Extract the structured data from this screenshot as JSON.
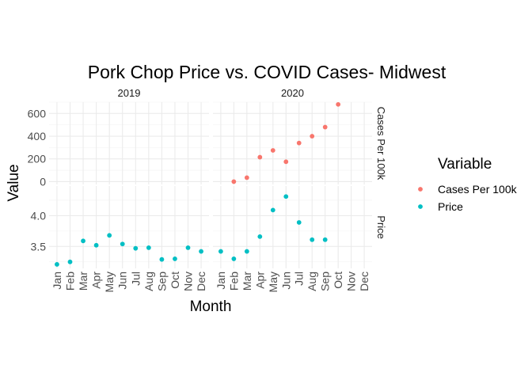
{
  "chart_data": {
    "type": "scatter",
    "title": "Pork Chop Price vs. COVID Cases- Midwest",
    "xlabel": "Month",
    "ylabel": "Value",
    "categories": [
      "Jan",
      "Feb",
      "Mar",
      "Apr",
      "May",
      "Jun",
      "Jul",
      "Aug",
      "Sep",
      "Oct",
      "Nov",
      "Dec"
    ],
    "columns": [
      "2019",
      "2020"
    ],
    "rows": [
      {
        "key": "cases",
        "label": "Cases Per 100k",
        "ylim": [
          -25,
          700
        ],
        "ticks": [
          0,
          200,
          400,
          600
        ],
        "tick_labels": [
          "0",
          "200",
          "400",
          "600"
        ]
      },
      {
        "key": "price",
        "label": "Price",
        "ylim": [
          3.145,
          4.48
        ],
        "ticks": [
          3.5,
          4.0
        ],
        "tick_labels": [
          "3.5",
          "4.0"
        ]
      }
    ],
    "series": [
      {
        "name": "Cases Per 100k",
        "color": "#F8766D",
        "row": "cases",
        "values": {
          "2019": [
            null,
            null,
            null,
            null,
            null,
            null,
            null,
            null,
            null,
            null,
            null,
            null
          ],
          "2020": [
            null,
            0,
            35,
            215,
            275,
            175,
            340,
            400,
            480,
            680,
            null,
            null
          ]
        }
      },
      {
        "name": "Price",
        "color": "#00BFC4",
        "row": "price",
        "values": {
          "2019": [
            3.21,
            3.25,
            3.59,
            3.52,
            3.68,
            3.54,
            3.47,
            3.48,
            3.29,
            3.3,
            3.48,
            3.42
          ],
          "2020": [
            3.42,
            3.3,
            3.42,
            3.66,
            4.09,
            4.31,
            3.89,
            3.61,
            3.61,
            null,
            null,
            null
          ]
        }
      }
    ],
    "legend": {
      "title": "Variable",
      "position": "right"
    },
    "grid": true
  }
}
